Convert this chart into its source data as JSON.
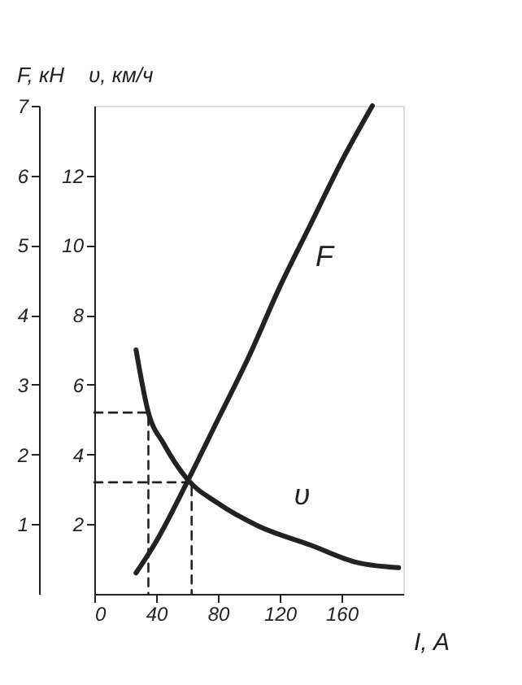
{
  "chart_data": {
    "type": "line",
    "xlabel": "I, A",
    "ylabel": "F, кН",
    "y2label": "υ, км/ч",
    "xlim": [
      0,
      200
    ],
    "xticks": [
      0,
      40,
      80,
      120,
      160
    ],
    "ylim": [
      0,
      7
    ],
    "yticks": [
      1,
      2,
      3,
      4,
      5,
      6,
      7
    ],
    "y2lim": [
      0,
      14
    ],
    "y2ticks": [
      2,
      4,
      6,
      8,
      10,
      12
    ],
    "grid": false,
    "line_style": "solid",
    "series": [
      {
        "name": "F",
        "color": "#222222",
        "x": [
          27,
          40,
          60,
          80,
          100,
          120,
          140,
          160,
          180
        ],
        "values": [
          0.3,
          0.75,
          1.6,
          2.5,
          3.4,
          4.4,
          5.3,
          6.2,
          7.0
        ]
      },
      {
        "name": "υ",
        "color": "#222222",
        "axis": "y2",
        "x": [
          27,
          35,
          45,
          60,
          80,
          106,
          140,
          170,
          197
        ],
        "values": [
          7.0,
          5.2,
          4.3,
          3.3,
          2.6,
          1.95,
          1.4,
          0.9,
          0.75
        ]
      },
      {
        "color": "#222222",
        "axis": "y2",
        "line_style": "dashed",
        "x": [
          0,
          35,
          35
        ],
        "values": [
          5.2,
          5.2,
          0
        ]
      },
      {
        "color": "#222222",
        "line_style": "dashed",
        "x": [
          0,
          63,
          63
        ],
        "values": [
          1.6,
          1.6,
          0
        ]
      }
    ]
  }
}
